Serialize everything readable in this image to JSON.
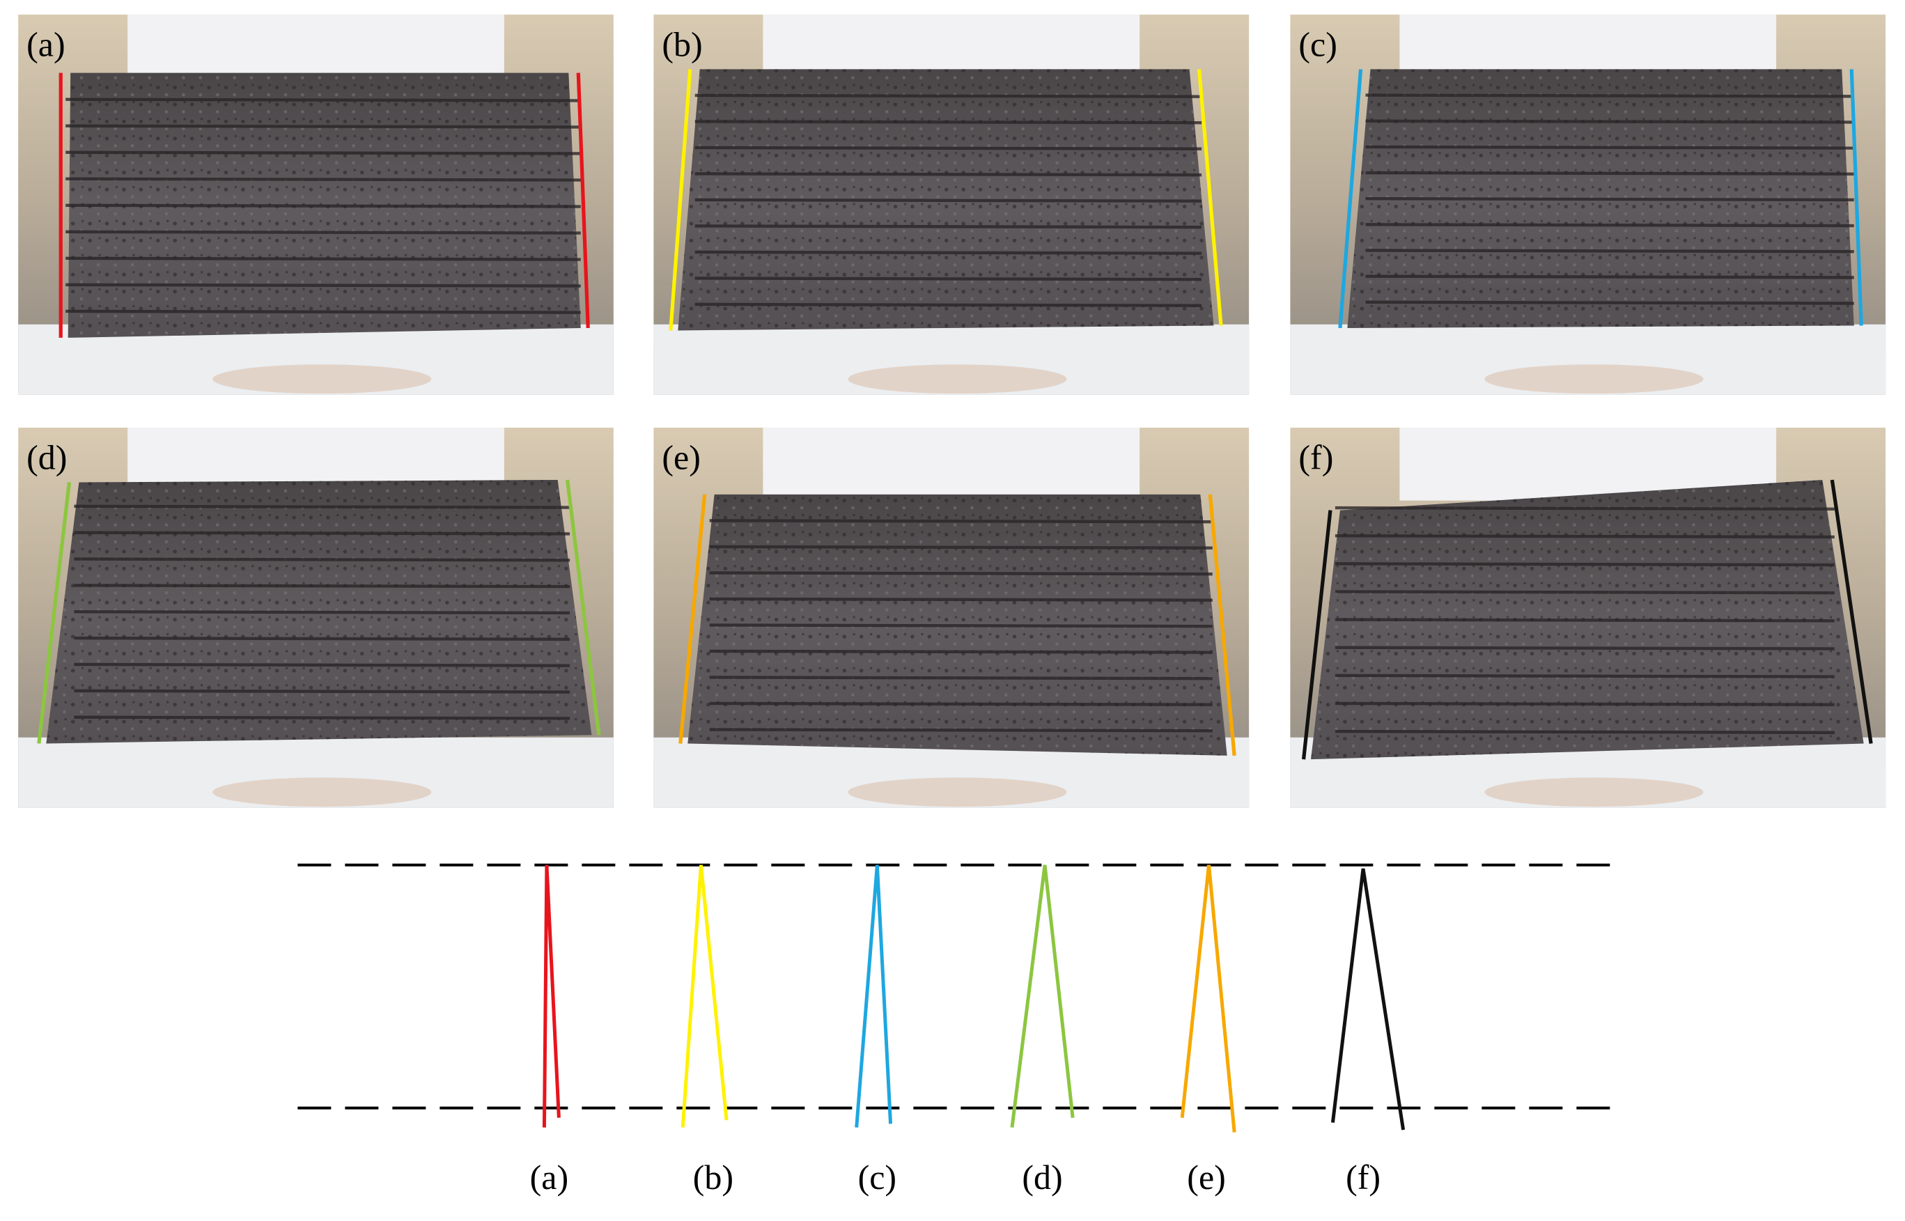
{
  "panels": [
    {
      "label": "(a)"
    },
    {
      "label": "(b)"
    },
    {
      "label": "(c)"
    },
    {
      "label": "(d)"
    },
    {
      "label": "(e)"
    },
    {
      "label": "(f)"
    }
  ],
  "diagram": {
    "labels": [
      "(a)",
      "(b)",
      "(c)",
      "(d)",
      "(e)",
      "(f)"
    ]
  }
}
